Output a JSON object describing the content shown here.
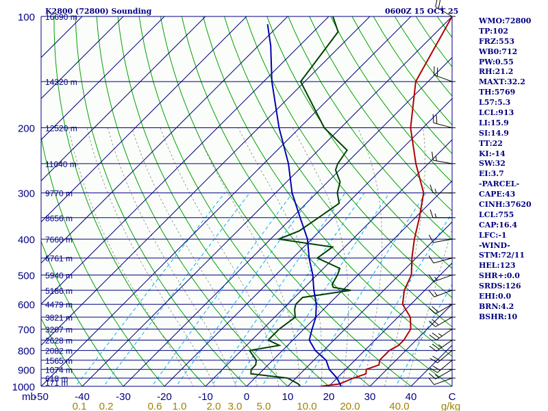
{
  "header": {
    "title_left": "K2800 (72800) Sounding",
    "title_right": "0600Z 15 OCT 25"
  },
  "indices": [
    "WMO:72800",
    "TP:102",
    "FRZ:553",
    "WB0:712",
    "PW:0.55",
    "RH:21.2",
    "MAXT:32.2",
    "TH:5769",
    "L57:5.3",
    "LCL:913",
    "LI:15.9",
    "SI:14.9",
    "TT:22",
    "KI:-14",
    "SW:32",
    "EI:3.7",
    "-PARCEL-",
    "CAPE:43",
    "CINH:37620",
    "LCL:755",
    "CAP:16.4",
    "LFC:-1",
    "-WIND-",
    "STM:72/11",
    "HEL:123",
    "SHR+:0.0",
    "SRDS:126",
    "EHI:0.0",
    "BRN:4.2",
    "BSHR:10"
  ],
  "colors": {
    "isobar": "#000080",
    "isotherm": "#000080",
    "dry_adiabat": "#00a000",
    "moist_adiabat": "#888888",
    "mixing_ratio": "#00aaff",
    "temperature": "#b00000",
    "dewpoint": "#004000",
    "parcel": "#0000b0",
    "axis_text": "#000080",
    "mixing_text": "#a08000",
    "background": "#fafdfa"
  },
  "chart_data": {
    "type": "line",
    "title": "K2800 (72800) Sounding",
    "subtitle": "0600Z 15 OCT 25",
    "xlabel": "°C",
    "ylabel": "mb",
    "xlim": [
      -50,
      50
    ],
    "ylim": [
      1000,
      100
    ],
    "x_ticks": [
      "-50",
      "-40",
      "-30",
      "-20",
      "-10",
      "0",
      "10",
      "20",
      "30",
      "40",
      "C"
    ],
    "pressure_ticks": [
      100,
      200,
      300,
      400,
      500,
      600,
      700,
      800,
      900,
      1000
    ],
    "height_labels": [
      {
        "p": 100,
        "h": "16690 m"
      },
      {
        "p": 150,
        "h": "14320 m"
      },
      {
        "p": 200,
        "h": "12520 m"
      },
      {
        "p": 250,
        "h": "11040 m"
      },
      {
        "p": 300,
        "h": "9770 m"
      },
      {
        "p": 350,
        "h": "8656 m"
      },
      {
        "p": 400,
        "h": "7660 m"
      },
      {
        "p": 450,
        "h": "6761 m"
      },
      {
        "p": 500,
        "h": "5940 m"
      },
      {
        "p": 550,
        "h": "5186 m"
      },
      {
        "p": 600,
        "h": "4479 m"
      },
      {
        "p": 650,
        "h": "3821 m"
      },
      {
        "p": 700,
        "h": "3207 m"
      },
      {
        "p": 750,
        "h": "2628 m"
      },
      {
        "p": 800,
        "h": "2082 m"
      },
      {
        "p": 850,
        "h": "1565 m"
      },
      {
        "p": 900,
        "h": "1074 m"
      },
      {
        "p": 950,
        "h": "618 m"
      },
      {
        "p": 975,
        "h": "171 m"
      }
    ],
    "mixing_ratio_labels": [
      "0.1",
      "0.2",
      "0.6",
      "1.0",
      "2.0",
      "3.0",
      "5.0",
      "10.0",
      "20.0",
      "40.0",
      "g/kg"
    ],
    "series": [
      {
        "name": "Temperature",
        "points": [
          [
            1000,
            18
          ],
          [
            985,
            22
          ],
          [
            950,
            24
          ],
          [
            925,
            26
          ],
          [
            900,
            25
          ],
          [
            875,
            27
          ],
          [
            850,
            26
          ],
          [
            800,
            26
          ],
          [
            775,
            27
          ],
          [
            750,
            27
          ],
          [
            700,
            26
          ],
          [
            650,
            23
          ],
          [
            600,
            18
          ],
          [
            550,
            15
          ],
          [
            500,
            13
          ],
          [
            450,
            9
          ],
          [
            400,
            5
          ],
          [
            350,
            1
          ],
          [
            300,
            -4
          ],
          [
            250,
            -13
          ],
          [
            200,
            -23
          ],
          [
            150,
            -33
          ],
          [
            100,
            -40
          ]
        ]
      },
      {
        "name": "Dewpoint",
        "points": [
          [
            1000,
            13
          ],
          [
            985,
            12
          ],
          [
            950,
            8
          ],
          [
            925,
            -2
          ],
          [
            900,
            -3
          ],
          [
            875,
            -3
          ],
          [
            850,
            -4
          ],
          [
            800,
            -8
          ],
          [
            775,
            -2
          ],
          [
            750,
            -6
          ],
          [
            700,
            -6
          ],
          [
            650,
            -5
          ],
          [
            620,
            -7
          ],
          [
            600,
            -8
          ],
          [
            575,
            -8
          ],
          [
            550,
            2
          ],
          [
            540,
            -3
          ],
          [
            530,
            -4
          ],
          [
            500,
            -5
          ],
          [
            480,
            -6
          ],
          [
            450,
            -14
          ],
          [
            420,
            -13
          ],
          [
            400,
            -28
          ],
          [
            380,
            -25
          ],
          [
            320,
            -22
          ],
          [
            300,
            -25
          ],
          [
            280,
            -27
          ],
          [
            260,
            -31
          ],
          [
            250,
            -32
          ],
          [
            230,
            -33
          ],
          [
            200,
            -44
          ],
          [
            150,
            -61
          ],
          [
            110,
            -64
          ],
          [
            100,
            -69
          ]
        ]
      },
      {
        "name": "Parcel",
        "points": [
          [
            1000,
            23
          ],
          [
            950,
            20
          ],
          [
            900,
            16
          ],
          [
            850,
            13
          ],
          [
            800,
            8
          ],
          [
            750,
            4
          ],
          [
            700,
            2
          ],
          [
            650,
            0
          ],
          [
            600,
            -3
          ],
          [
            550,
            -7
          ],
          [
            500,
            -11
          ],
          [
            450,
            -16
          ],
          [
            400,
            -21
          ],
          [
            350,
            -28
          ],
          [
            300,
            -36
          ],
          [
            250,
            -44
          ],
          [
            200,
            -55
          ],
          [
            150,
            -68
          ],
          [
            120,
            -77
          ],
          [
            105,
            -83
          ]
        ]
      }
    ],
    "wind_barbs": [
      {
        "p": 100,
        "dir": 300,
        "spd": 25
      },
      {
        "p": 150,
        "dir": 290,
        "spd": 20
      },
      {
        "p": 200,
        "dir": 285,
        "spd": 20
      },
      {
        "p": 250,
        "dir": 280,
        "spd": 15
      },
      {
        "p": 300,
        "dir": 270,
        "spd": 15
      },
      {
        "p": 350,
        "dir": 270,
        "spd": 15
      },
      {
        "p": 400,
        "dir": 260,
        "spd": 10
      },
      {
        "p": 450,
        "dir": 255,
        "spd": 10
      },
      {
        "p": 500,
        "dir": 250,
        "spd": 15
      },
      {
        "p": 550,
        "dir": 250,
        "spd": 15
      },
      {
        "p": 600,
        "dir": 240,
        "spd": 20
      },
      {
        "p": 650,
        "dir": 240,
        "spd": 20
      },
      {
        "p": 700,
        "dir": 235,
        "spd": 25
      },
      {
        "p": 750,
        "dir": 235,
        "spd": 25
      },
      {
        "p": 800,
        "dir": 230,
        "spd": 20
      },
      {
        "p": 850,
        "dir": 230,
        "spd": 20
      },
      {
        "p": 900,
        "dir": 240,
        "spd": 15
      },
      {
        "p": 950,
        "dir": 250,
        "spd": 10
      }
    ]
  }
}
